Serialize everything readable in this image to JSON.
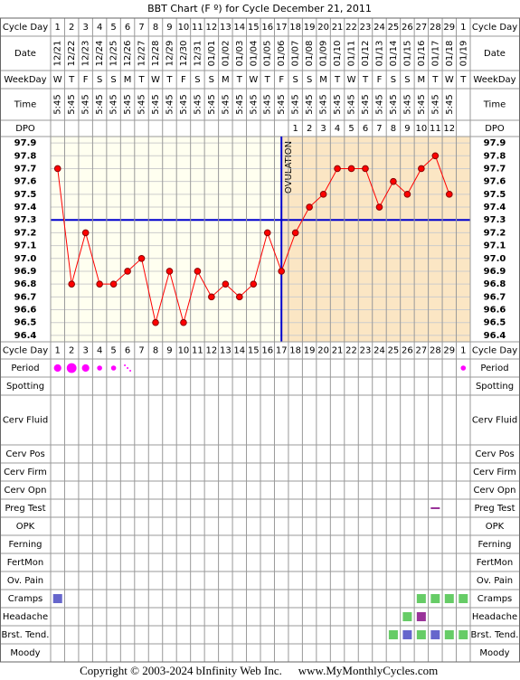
{
  "header": {
    "title": "BBT Chart (F º) for Cycle December 21, 2011"
  },
  "labels": {
    "cycle_day": "Cycle Day",
    "date": "Date",
    "weekday": "WeekDay",
    "time": "Time",
    "dpo": "DPO"
  },
  "table": {
    "cycle_day": [
      "1",
      "2",
      "3",
      "4",
      "5",
      "6",
      "7",
      "8",
      "9",
      "10",
      "11",
      "12",
      "13",
      "14",
      "15",
      "16",
      "17",
      "18",
      "19",
      "20",
      "21",
      "22",
      "23",
      "24",
      "25",
      "26",
      "27",
      "28",
      "29",
      "1"
    ],
    "date": [
      "12/21",
      "12/22",
      "12/23",
      "12/24",
      "12/25",
      "12/26",
      "12/27",
      "12/28",
      "12/29",
      "12/30",
      "12/31",
      "01/01",
      "01/02",
      "01/03",
      "01/04",
      "01/05",
      "01/06",
      "01/07",
      "01/08",
      "01/09",
      "01/10",
      "01/11",
      "01/12",
      "01/13",
      "01/14",
      "01/15",
      "01/16",
      "01/17",
      "01/18",
      "01/19"
    ],
    "weekday": [
      "W",
      "T",
      "F",
      "S",
      "S",
      "M",
      "T",
      "W",
      "T",
      "F",
      "S",
      "S",
      "M",
      "T",
      "W",
      "T",
      "F",
      "S",
      "S",
      "M",
      "T",
      "W",
      "T",
      "F",
      "S",
      "S",
      "M",
      "T",
      "W",
      "T"
    ],
    "time": [
      "5:45",
      "5:45",
      "5:45",
      "5:45",
      "5:45",
      "5:45",
      "5:45",
      "5:45",
      "5:45",
      "5:45",
      "5:45",
      "5:45",
      "5:45",
      "5:45",
      "5:45",
      "5:45",
      "5:45",
      "5:45",
      "5:45",
      "5:45",
      "5:45",
      "5:45",
      "5:45",
      "5:45",
      "5:45",
      "5:45",
      "5:45",
      "5:45",
      "5:45",
      null
    ],
    "dpo": [
      null,
      null,
      null,
      null,
      null,
      null,
      null,
      null,
      null,
      null,
      null,
      null,
      null,
      null,
      null,
      null,
      null,
      1,
      2,
      3,
      4,
      5,
      6,
      7,
      8,
      9,
      10,
      11,
      12,
      null
    ]
  },
  "chart_data": {
    "type": "line",
    "values": [
      97.7,
      96.8,
      97.2,
      96.8,
      96.8,
      96.9,
      97.0,
      96.5,
      96.9,
      96.5,
      96.9,
      96.7,
      96.8,
      96.7,
      96.8,
      97.2,
      96.9,
      97.2,
      97.4,
      97.5,
      97.7,
      97.7,
      97.7,
      97.4,
      97.6,
      97.5,
      97.7,
      97.8,
      97.5,
      null
    ],
    "color": "#ff0000",
    "ylim": [
      96.35,
      97.95
    ],
    "yticks": [
      97.9,
      97.8,
      97.7,
      97.6,
      97.5,
      97.4,
      97.3,
      97.2,
      97.1,
      {
        "value": 97.0,
        "label": "97.0"
      },
      96.9,
      96.8,
      96.7,
      96.6,
      96.5,
      96.4
    ],
    "grid": true,
    "coverline": 97.3,
    "ovulation_day": 17,
    "annotation": "OVULATION"
  },
  "symptoms": [
    {
      "label": "Period",
      "mark": "circle",
      "color": "#ff00ff",
      "values": [
        2,
        3,
        2,
        1,
        1,
        0.5,
        null,
        null,
        null,
        null,
        null,
        null,
        null,
        null,
        null,
        null,
        null,
        null,
        null,
        null,
        null,
        null,
        null,
        null,
        null,
        null,
        null,
        null,
        null,
        1
      ]
    },
    {
      "label": "Spotting"
    },
    {
      "label": "Cerv Fluid"
    },
    {
      "label": "Cerv Pos"
    },
    {
      "label": "Cerv Firm"
    },
    {
      "label": "Cerv Opn"
    },
    {
      "label": "Preg Test",
      "mark": "dash",
      "values": [
        null,
        null,
        null,
        null,
        null,
        null,
        null,
        null,
        null,
        null,
        null,
        null,
        null,
        null,
        null,
        null,
        null,
        null,
        null,
        null,
        null,
        null,
        null,
        null,
        null,
        null,
        null,
        "#993399",
        null,
        null
      ]
    },
    {
      "label": "OPK"
    },
    {
      "label": "Ferning"
    },
    {
      "label": "FertMon"
    },
    {
      "label": "Ov. Pain"
    },
    {
      "label": "Cramps",
      "mark": "square",
      "values": [
        "#6666cc",
        null,
        null,
        null,
        null,
        null,
        null,
        null,
        null,
        null,
        null,
        null,
        null,
        null,
        null,
        null,
        null,
        null,
        null,
        null,
        null,
        null,
        null,
        null,
        null,
        null,
        "#66cc66",
        "#66cc66",
        "#66cc66",
        "#66cc66"
      ]
    },
    {
      "label": "Headache",
      "mark": "square",
      "values": [
        null,
        null,
        null,
        null,
        null,
        null,
        null,
        null,
        null,
        null,
        null,
        null,
        null,
        null,
        null,
        null,
        null,
        null,
        null,
        null,
        null,
        null,
        null,
        null,
        null,
        "#66cc66",
        "#993399",
        null,
        null,
        null
      ]
    },
    {
      "label": "Brst. Tend.",
      "mark": "square",
      "values": [
        null,
        null,
        null,
        null,
        null,
        null,
        null,
        null,
        null,
        null,
        null,
        null,
        null,
        null,
        null,
        null,
        null,
        null,
        null,
        null,
        null,
        null,
        null,
        null,
        "#66cc66",
        "#6666cc",
        "#66cc66",
        "#6666cc",
        "#66cc66",
        "#66cc66"
      ]
    },
    {
      "label": "Moody"
    }
  ],
  "footer": {
    "copyright": "Copyright © 2003-2024 bInfinity Web Inc.",
    "site": "www.MyMonthlyCycles.com"
  }
}
